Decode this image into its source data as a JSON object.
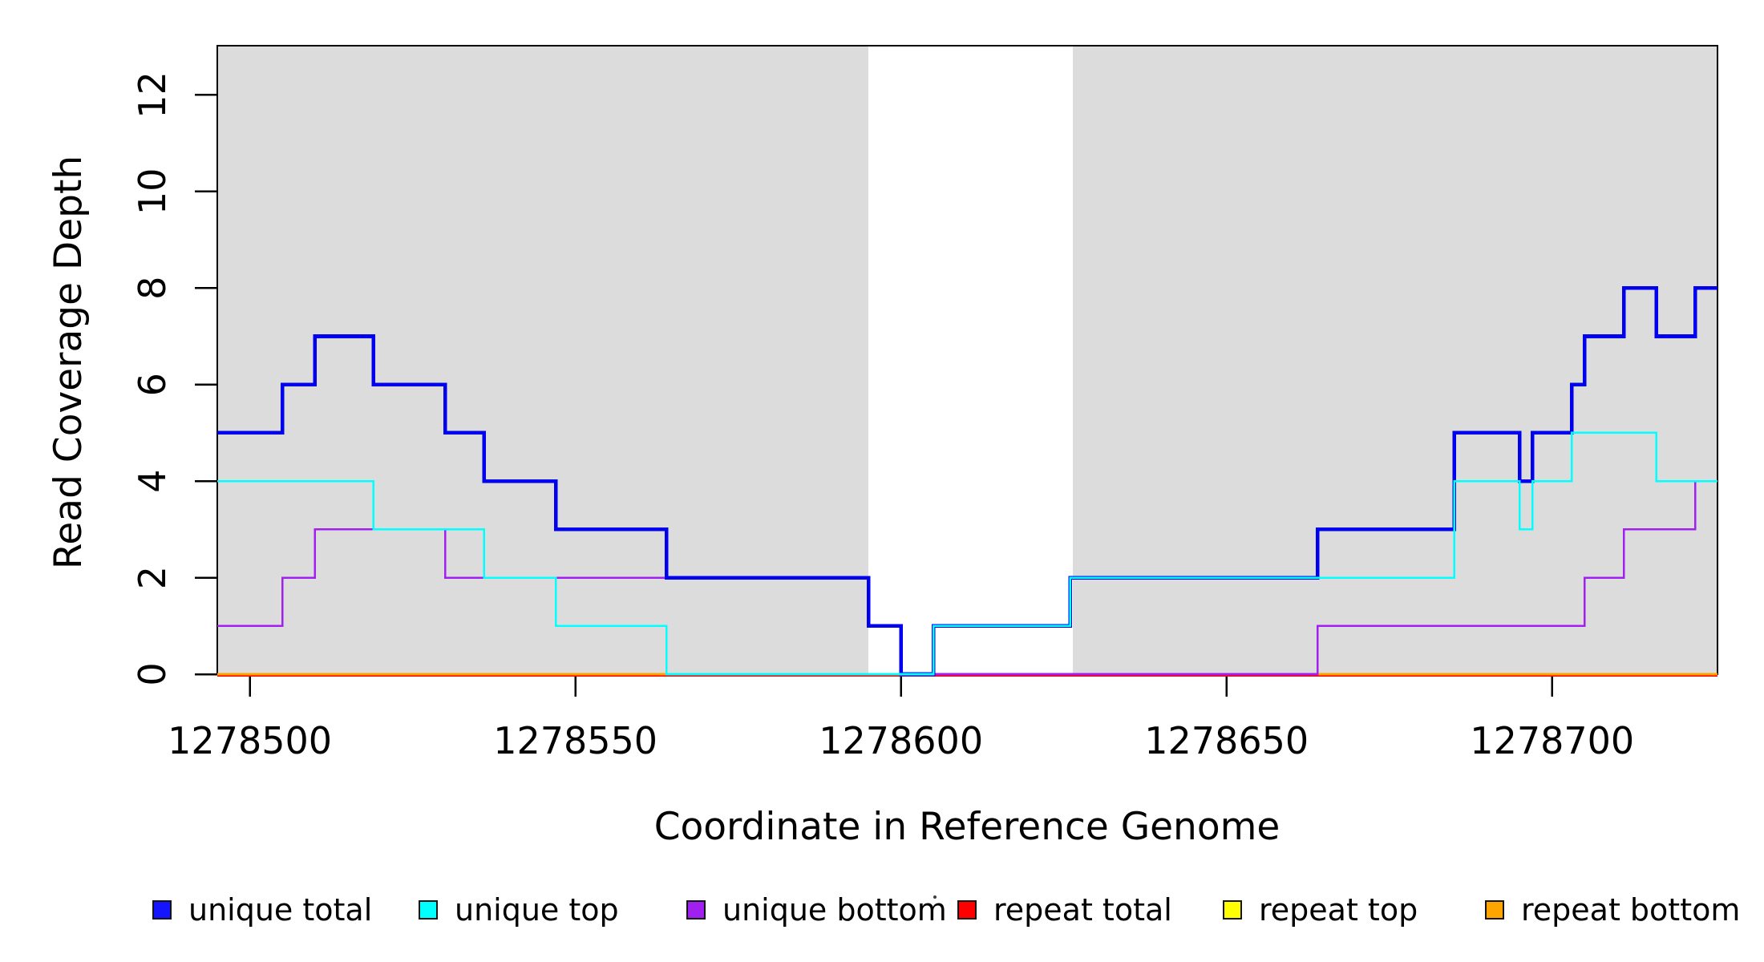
{
  "chart_data": {
    "type": "line",
    "subtype": "step-coverage",
    "title": "",
    "xlabel": "Coordinate in Reference Genome",
    "ylabel": "Read Coverage Depth",
    "x_ticks": [
      1278500,
      1278550,
      1278600,
      1278650,
      1278700
    ],
    "x_tick_labels": [
      "1278500",
      "1278550",
      "1278600",
      "1278650",
      "1278700"
    ],
    "y_ticks": [
      0,
      2,
      4,
      6,
      8,
      10,
      12
    ],
    "y_tick_labels": [
      "0",
      "2",
      "4",
      "6",
      "8",
      "10",
      "12"
    ],
    "xlim": [
      1278495,
      1278725.4
    ],
    "ylim": [
      0,
      13.02
    ],
    "grid": false,
    "legend_position": "bottom",
    "panel_background": "#ffffff",
    "shaded_regions": [
      {
        "name": "left-gray-region",
        "x0": 1278495,
        "x1": 1278595,
        "color": "#DCDCDC"
      },
      {
        "name": "right-gray-region",
        "x0": 1278626.4,
        "x1": 1278725.4,
        "color": "#DCDCDC"
      }
    ],
    "series": [
      {
        "name": "repeat total",
        "color": "#FF0000",
        "width": 2.6,
        "points": [
          [
            1278495,
            0
          ]
        ]
      },
      {
        "name": "repeat top",
        "color": "#FFFF00",
        "width": 3.0,
        "points": [
          [
            1278495,
            0
          ]
        ]
      },
      {
        "name": "repeat bottom",
        "color": "#FFA500",
        "width": 3.2,
        "points": [
          [
            1278495,
            0
          ]
        ]
      },
      {
        "name": "unique bottom",
        "color": "#A020F0",
        "width": 2.6,
        "points": [
          [
            1278495,
            1
          ],
          [
            1278505,
            2
          ],
          [
            1278510,
            3
          ],
          [
            1278530,
            2
          ],
          [
            1278595,
            1
          ],
          [
            1278600,
            0
          ],
          [
            1278664,
            1
          ],
          [
            1278705,
            2
          ],
          [
            1278711,
            3
          ],
          [
            1278722,
            4
          ]
        ]
      },
      {
        "name": "unique total",
        "color": "#0000EE",
        "width": 4.6,
        "points": [
          [
            1278495,
            5
          ],
          [
            1278505,
            6
          ],
          [
            1278510,
            7
          ],
          [
            1278519,
            6
          ],
          [
            1278530,
            5
          ],
          [
            1278536,
            4
          ],
          [
            1278547,
            3
          ],
          [
            1278564,
            2
          ],
          [
            1278595,
            1
          ],
          [
            1278600,
            0
          ],
          [
            1278605,
            1
          ],
          [
            1278626,
            2
          ],
          [
            1278664,
            3
          ],
          [
            1278685,
            5
          ],
          [
            1278695,
            4
          ],
          [
            1278697,
            5
          ],
          [
            1278703,
            6
          ],
          [
            1278705,
            7
          ],
          [
            1278711,
            8
          ],
          [
            1278716,
            7
          ],
          [
            1278722,
            8
          ]
        ]
      },
      {
        "name": "unique top",
        "color": "#00FFFF",
        "width": 2.6,
        "points": [
          [
            1278495,
            4
          ],
          [
            1278519,
            3
          ],
          [
            1278536,
            2
          ],
          [
            1278547,
            1
          ],
          [
            1278564,
            0
          ],
          [
            1278605,
            1
          ],
          [
            1278626,
            2
          ],
          [
            1278685,
            4
          ],
          [
            1278695,
            3
          ],
          [
            1278697,
            4
          ],
          [
            1278703,
            5
          ],
          [
            1278716,
            4
          ]
        ]
      }
    ],
    "legend": [
      {
        "label": "unique total",
        "color": "#1414FF"
      },
      {
        "label": "unique top",
        "color": "#00FFFF"
      },
      {
        "label": "unique bottom",
        "color": "#A020F0"
      },
      {
        "label": "repeat total",
        "color": "#FF0000"
      },
      {
        "label": "repeat top",
        "color": "#FFFF00"
      },
      {
        "label": "repeat bottom",
        "color": "#FFA500"
      }
    ]
  }
}
